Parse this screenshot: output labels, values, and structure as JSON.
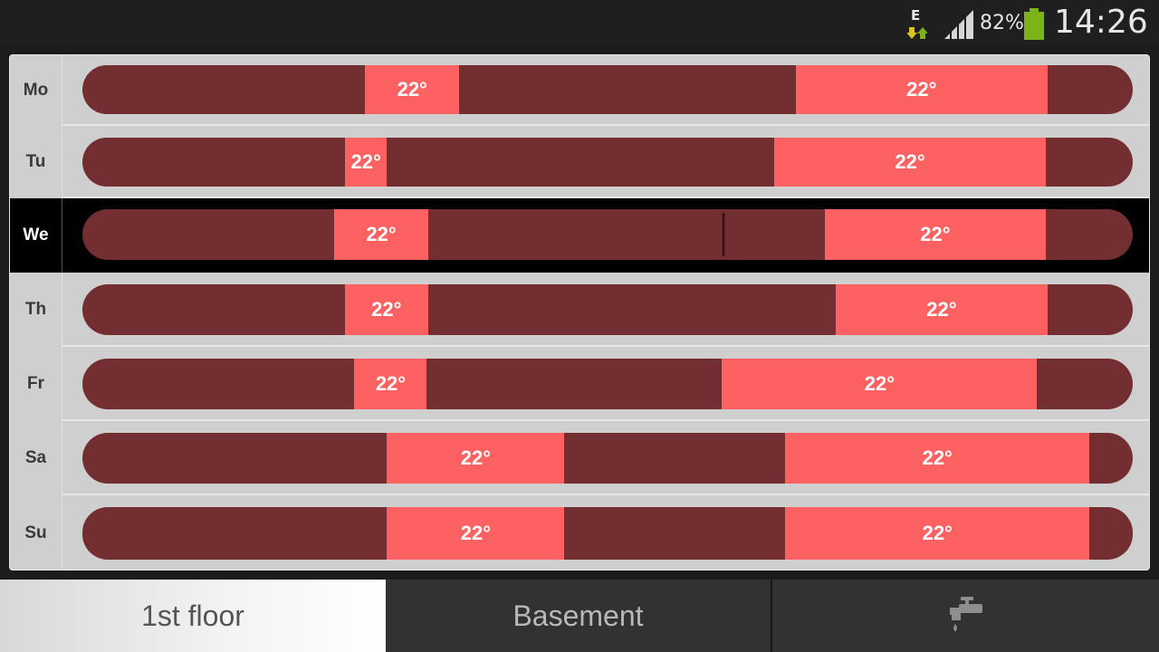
{
  "status_bar": {
    "network_type": "E",
    "battery_percent": "82%",
    "clock": "14:26",
    "colors": {
      "battery": "#7db31a",
      "arrows": "#d8c321"
    }
  },
  "schedule": {
    "days": [
      {
        "label": "Mo",
        "selected": false,
        "slots": [
          {
            "start": 0.269,
            "end": 0.359,
            "temp": "22°"
          },
          {
            "start": 0.679,
            "end": 0.919,
            "temp": "22°"
          }
        ]
      },
      {
        "label": "Tu",
        "selected": false,
        "slots": [
          {
            "start": 0.25,
            "end": 0.29,
            "temp": "22°"
          },
          {
            "start": 0.659,
            "end": 0.917,
            "temp": "22°"
          }
        ]
      },
      {
        "label": "We",
        "selected": true,
        "marker": 0.61,
        "slots": [
          {
            "start": 0.24,
            "end": 0.329,
            "temp": "22°"
          },
          {
            "start": 0.707,
            "end": 0.917,
            "temp": "22°"
          }
        ]
      },
      {
        "label": "Th",
        "selected": false,
        "slots": [
          {
            "start": 0.25,
            "end": 0.329,
            "temp": "22°"
          },
          {
            "start": 0.717,
            "end": 0.919,
            "temp": "22°"
          }
        ]
      },
      {
        "label": "Fr",
        "selected": false,
        "slots": [
          {
            "start": 0.259,
            "end": 0.328,
            "temp": "22°"
          },
          {
            "start": 0.609,
            "end": 0.909,
            "temp": "22°"
          }
        ]
      },
      {
        "label": "Sa",
        "selected": false,
        "slots": [
          {
            "start": 0.29,
            "end": 0.459,
            "temp": "22°"
          },
          {
            "start": 0.669,
            "end": 0.959,
            "temp": "22°"
          }
        ]
      },
      {
        "label": "Su",
        "selected": false,
        "slots": [
          {
            "start": 0.29,
            "end": 0.459,
            "temp": "22°"
          },
          {
            "start": 0.669,
            "end": 0.959,
            "temp": "22°"
          }
        ]
      }
    ],
    "colors": {
      "off": "#722e31",
      "on": "#fe6161"
    }
  },
  "tabs": {
    "first_floor": "1st floor",
    "basement": "Basement",
    "water_icon": "faucet-icon"
  }
}
